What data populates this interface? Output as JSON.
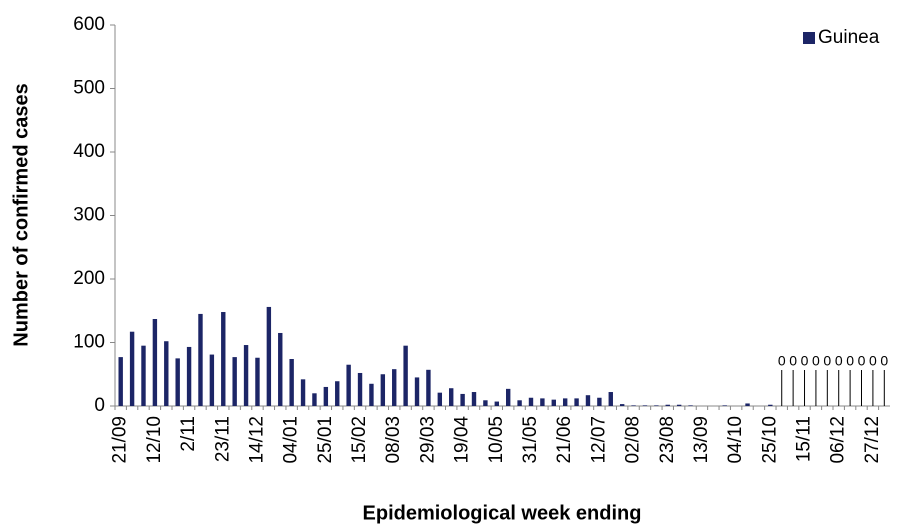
{
  "chart_data": {
    "type": "bar",
    "x_label": "Epidemiological week ending",
    "y_label": "Number of confirmed cases",
    "categories": [
      "21/09",
      null,
      null,
      "12/10",
      null,
      null,
      "2/11",
      null,
      null,
      "23/11",
      null,
      null,
      "14/12",
      null,
      null,
      "04/01",
      null,
      null,
      "25/01",
      null,
      null,
      "15/02",
      null,
      null,
      "08/03",
      null,
      null,
      "29/03",
      null,
      null,
      "19/04",
      null,
      null,
      "10/05",
      null,
      null,
      "31/05",
      null,
      null,
      "21/06",
      null,
      null,
      "12/07",
      null,
      null,
      "02/08",
      null,
      null,
      "23/08",
      null,
      null,
      "13/09",
      null,
      null,
      "04/10",
      null,
      null,
      "25/10",
      null,
      null,
      "15/11",
      null,
      null,
      "06/12",
      null,
      null,
      "27/12",
      null
    ],
    "series": [
      {
        "name": "Guinea",
        "color": "#1c2566",
        "values": [
          77,
          117,
          95,
          137,
          102,
          75,
          93,
          145,
          81,
          148,
          77,
          96,
          76,
          156,
          115,
          74,
          42,
          20,
          30,
          39,
          65,
          52,
          35,
          50,
          58,
          95,
          45,
          57,
          21,
          28,
          19,
          22,
          9,
          7,
          27,
          9,
          13,
          12,
          10,
          12,
          12,
          17,
          13,
          22,
          3,
          1,
          1,
          1,
          2,
          2,
          1,
          0,
          0,
          1,
          0,
          4,
          0,
          2,
          0,
          0,
          0,
          0,
          0,
          0,
          0,
          0,
          0,
          0
        ],
        "value_labels": [
          null,
          null,
          null,
          null,
          null,
          null,
          null,
          null,
          null,
          null,
          null,
          null,
          null,
          null,
          null,
          null,
          null,
          null,
          null,
          null,
          null,
          null,
          null,
          null,
          null,
          null,
          null,
          null,
          null,
          null,
          null,
          null,
          null,
          null,
          null,
          null,
          null,
          null,
          null,
          null,
          null,
          null,
          null,
          null,
          null,
          null,
          null,
          null,
          null,
          null,
          null,
          null,
          null,
          null,
          null,
          null,
          null,
          null,
          "0",
          "0",
          "0",
          "0",
          "0",
          "0",
          "0",
          "0",
          "0",
          "0"
        ]
      }
    ],
    "ylim": [
      0,
      600
    ],
    "yticks": [
      0,
      100,
      200,
      300,
      400,
      500,
      600
    ],
    "legend": "top-right"
  }
}
